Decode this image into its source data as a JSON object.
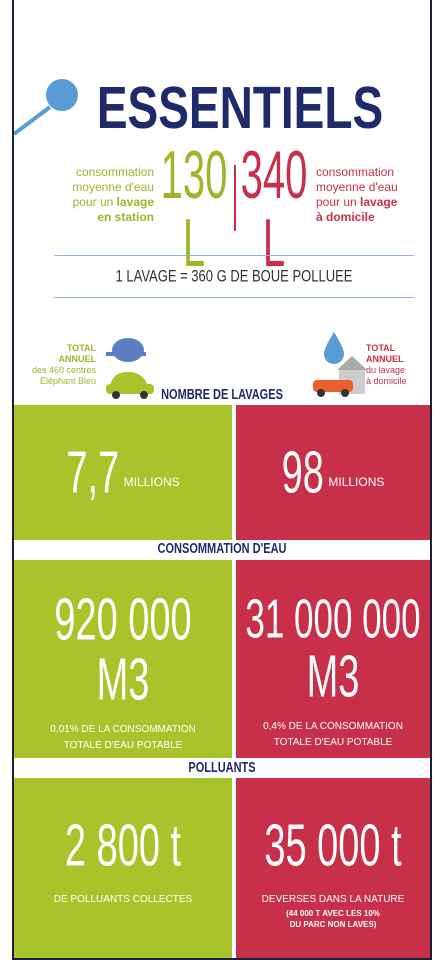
{
  "title": "ESSENTIELS",
  "station": {
    "description": [
      "consommation",
      "moyenne d'eau",
      "pour un",
      "lavage",
      "en station"
    ],
    "value": "130 L"
  },
  "home": {
    "value": "340 L",
    "description": [
      "consommation",
      "moyenne d'eau",
      "pour un",
      "lavage",
      "à domicile"
    ]
  },
  "banner": "1 LAVAGE = 360 G DE BOUE POLLUEE",
  "totals": {
    "left": [
      "TOTAL",
      "ANNUEL",
      "des 460 centres",
      "Eléphant Bleu"
    ],
    "right": [
      "TOTAL",
      "ANNUEL",
      "du lavage",
      "à domicile"
    ]
  },
  "sections": [
    {
      "title": "NOMBRE DE LAVAGES",
      "left": {
        "value": "7,7",
        "unit": "MILLIONS"
      },
      "right": {
        "value": "98",
        "unit": "MILLIONS"
      }
    },
    {
      "title": "CONSOMMATION D'EAU",
      "left": {
        "value": "920 000",
        "unit": "M3",
        "note": [
          "0,01% DE LA CONSOMMATION",
          "TOTALE D'EAU POTABLE"
        ]
      },
      "right": {
        "value": "31 000 000",
        "unit": "M3",
        "note": [
          "0,4% DE LA CONSOMMATION",
          "TOTALE D'EAU POTABLE"
        ]
      }
    },
    {
      "title": "POLLUANTS",
      "left": {
        "value": "2 800 t",
        "note": [
          "DE POLLUANTS COLLECTES"
        ]
      },
      "right": {
        "value": "35 000 t",
        "note": [
          "DEVERSES DANS LA NATURE",
          "(44 000 T AVEC LES 10%",
          "DU PARC NON LAVES)"
        ]
      }
    }
  ]
}
